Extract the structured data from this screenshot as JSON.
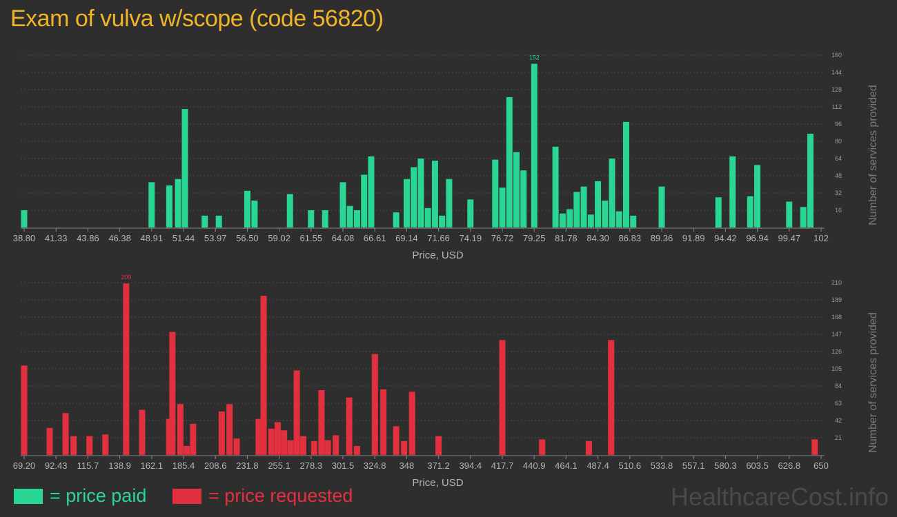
{
  "title": "Exam of vulva w/scope (code 56820)",
  "legend": {
    "paid": "= price paid",
    "requested": "= price requested"
  },
  "watermark": "HealthcareCost.info",
  "colors": {
    "paid": "#2ad693",
    "requested": "#e3303f",
    "title": "#f0b429",
    "background": "#2e2e2e"
  },
  "chart_data": [
    {
      "type": "bar",
      "xlabel": "Price, USD",
      "ylabel": "Number of services provided",
      "xlim": [
        38.8,
        102
      ],
      "ylim": [
        0,
        160
      ],
      "yticks": [
        16,
        32,
        48,
        64,
        80,
        96,
        112,
        128,
        144,
        160
      ],
      "xtick_labels": [
        "38.80",
        "41.33",
        "43.86",
        "46.38",
        "48.91",
        "51.44",
        "53.97",
        "56.50",
        "59.02",
        "61.55",
        "64.08",
        "66.61",
        "69.14",
        "71.66",
        "74.19",
        "76.72",
        "79.25",
        "81.78",
        "84.30",
        "86.83",
        "89.36",
        "91.89",
        "94.42",
        "96.94",
        "99.47",
        "102"
      ],
      "max_label": "152",
      "series": [
        {
          "color": "#2ad693",
          "x": [
            38.8,
            48.91,
            50.31,
            51.01,
            51.55,
            53.12,
            54.24,
            56.5,
            57.07,
            59.88,
            61.55,
            62.67,
            64.08,
            64.64,
            65.2,
            65.76,
            66.32,
            68.3,
            69.14,
            69.7,
            70.26,
            70.82,
            71.38,
            71.94,
            72.5,
            74.19,
            76.16,
            76.72,
            77.28,
            77.84,
            78.4,
            79.25,
            80.94,
            81.5,
            82.06,
            82.62,
            83.18,
            83.74,
            84.3,
            84.86,
            85.42,
            85.98,
            86.54,
            87.1,
            89.36,
            93.86,
            94.98,
            96.38,
            96.94,
            99.47,
            100.59,
            101.15
          ],
          "values": [
            16,
            42,
            39,
            45,
            110,
            11,
            11,
            34,
            25,
            31,
            16,
            16,
            42,
            20,
            16,
            49,
            66,
            14,
            45,
            56,
            64,
            18,
            62,
            11,
            45,
            26,
            63,
            37,
            121,
            70,
            53,
            152,
            75,
            13,
            17,
            33,
            38,
            12,
            43,
            25,
            64,
            15,
            98,
            11,
            38,
            28,
            66,
            29,
            58,
            24,
            19,
            87
          ]
        }
      ]
    },
    {
      "type": "bar",
      "xlabel": "Price, USD",
      "ylabel": "Number of services provided",
      "xlim": [
        69.2,
        650
      ],
      "ylim": [
        0,
        210
      ],
      "yticks": [
        21,
        42,
        63,
        84,
        105,
        126,
        147,
        168,
        189,
        210
      ],
      "xtick_labels": [
        "69.20",
        "92.43",
        "115.7",
        "138.9",
        "162.1",
        "185.4",
        "208.6",
        "231.8",
        "255.1",
        "278.3",
        "301.5",
        "324.8",
        "348",
        "371.2",
        "394.4",
        "417.7",
        "440.9",
        "464.1",
        "487.4",
        "510.6",
        "533.8",
        "557.1",
        "580.3",
        "603.5",
        "626.8",
        "650"
      ],
      "max_label": "209",
      "series": [
        {
          "color": "#e3303f",
          "x": [
            69.2,
            87.79,
            99.4,
            105.21,
            116.83,
            128.44,
            143.54,
            155.16,
            174.9,
            177.23,
            183.03,
            187.68,
            192.32,
            213.23,
            218.9,
            224.07,
            240.1,
            243.74,
            249.32,
            253.97,
            258.61,
            263.26,
            267.9,
            272.55,
            280.6,
            285.87,
            290.51,
            296.32,
            306.1,
            311.76,
            324.8,
            331.01,
            340.3,
            346.11,
            351.91,
            371.2,
            417.7,
            446.71,
            480.75,
            497.0,
            645.35
          ],
          "values": [
            109,
            33,
            51,
            23,
            23,
            25,
            209,
            55,
            44,
            150,
            62,
            11,
            38,
            53,
            62,
            20,
            44,
            194,
            32,
            40,
            30,
            18,
            103,
            23,
            17,
            79,
            18,
            24,
            70,
            11,
            123,
            80,
            35,
            17,
            77,
            23,
            140,
            19,
            17,
            140,
            19
          ]
        }
      ]
    }
  ]
}
